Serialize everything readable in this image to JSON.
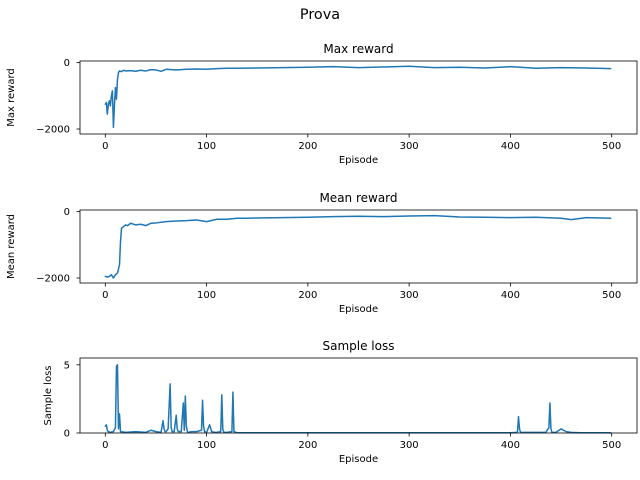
{
  "figure": {
    "suptitle": "Prova",
    "line_color": "#1f77b4"
  },
  "chart_data": [
    {
      "type": "line",
      "title": "Max reward",
      "xlabel": "Episode",
      "ylabel": "Max reward",
      "xlim": [
        -25,
        525
      ],
      "ylim": [
        -2150,
        50
      ],
      "xticks": [
        0,
        100,
        200,
        300,
        400,
        500
      ],
      "yticks": [
        -2000,
        0
      ],
      "ytick_labels": [
        "−2000",
        "0"
      ],
      "grid": false,
      "series": [
        {
          "x": [
            0,
            1,
            2,
            3,
            4,
            5,
            6,
            7,
            8,
            9,
            10,
            11,
            12,
            13,
            14,
            15,
            16,
            18,
            20,
            25,
            30,
            35,
            40,
            45,
            50,
            55,
            60,
            70,
            80,
            90,
            100,
            110,
            120,
            130,
            140,
            150,
            175,
            200,
            225,
            250,
            275,
            300,
            325,
            350,
            375,
            400,
            425,
            450,
            475,
            499
          ],
          "y": [
            -1250,
            -1200,
            -1550,
            -1250,
            -1150,
            -1300,
            -1000,
            -850,
            -1950,
            -1300,
            -750,
            -1100,
            -500,
            -300,
            -250,
            -260,
            -270,
            -230,
            -250,
            -240,
            -260,
            -230,
            -250,
            -210,
            -220,
            -260,
            -200,
            -220,
            -200,
            -190,
            -200,
            -180,
            -170,
            -170,
            -165,
            -160,
            -150,
            -140,
            -120,
            -150,
            -130,
            -110,
            -150,
            -140,
            -160,
            -120,
            -170,
            -150,
            -160,
            -180
          ]
        }
      ]
    },
    {
      "type": "line",
      "title": "Mean reward",
      "xlabel": "Episode",
      "ylabel": "Mean reward",
      "xlim": [
        -25,
        525
      ],
      "ylim": [
        -2150,
        50
      ],
      "xticks": [
        0,
        100,
        200,
        300,
        400,
        500
      ],
      "yticks": [
        -2000,
        0
      ],
      "ytick_labels": [
        "−2000",
        "0"
      ],
      "grid": false,
      "series": [
        {
          "x": [
            0,
            2,
            4,
            6,
            8,
            10,
            12,
            14,
            15,
            16,
            18,
            20,
            22,
            25,
            30,
            35,
            40,
            45,
            50,
            60,
            70,
            80,
            90,
            100,
            110,
            120,
            130,
            140,
            150,
            175,
            200,
            225,
            250,
            275,
            300,
            325,
            350,
            375,
            400,
            425,
            450,
            460,
            475,
            499
          ],
          "y": [
            -1950,
            -1970,
            -1950,
            -1900,
            -2000,
            -1900,
            -1850,
            -1600,
            -900,
            -500,
            -450,
            -400,
            -420,
            -350,
            -400,
            -380,
            -420,
            -350,
            -340,
            -300,
            -280,
            -270,
            -250,
            -300,
            -230,
            -230,
            -200,
            -200,
            -190,
            -180,
            -170,
            -150,
            -140,
            -150,
            -130,
            -120,
            -160,
            -170,
            -180,
            -170,
            -200,
            -240,
            -180,
            -200
          ]
        }
      ]
    },
    {
      "type": "line",
      "title": "Sample loss",
      "xlabel": "Episode",
      "ylabel": "Sample loss",
      "xlim": [
        -25,
        525
      ],
      "ylim": [
        0,
        5.5
      ],
      "xticks": [
        0,
        100,
        200,
        300,
        400,
        500
      ],
      "yticks": [
        0,
        5
      ],
      "ytick_labels": [
        "0",
        "5"
      ],
      "grid": false,
      "series": [
        {
          "x": [
            0,
            1,
            2,
            3,
            5,
            8,
            10,
            11,
            12,
            13,
            14,
            15,
            20,
            30,
            40,
            45,
            50,
            55,
            57,
            58,
            59,
            60,
            62,
            64,
            65,
            66,
            68,
            70,
            71,
            72,
            75,
            77,
            78,
            79,
            80,
            81,
            82,
            85,
            90,
            95,
            96,
            97,
            98,
            100,
            103,
            105,
            108,
            110,
            114,
            115,
            116,
            117,
            120,
            125,
            126,
            127,
            130,
            150,
            200,
            250,
            300,
            350,
            400,
            406,
            407,
            408,
            409,
            410,
            415,
            420,
            430,
            435,
            438,
            439,
            440,
            441,
            445,
            450,
            455,
            460,
            470,
            480,
            490,
            499
          ],
          "y": [
            0.5,
            0.6,
            0.2,
            0.1,
            0.05,
            0.1,
            0.4,
            4.9,
            5.0,
            0.3,
            1.4,
            0.1,
            0.05,
            0.1,
            0.05,
            0.2,
            0.1,
            0.05,
            0.9,
            0.3,
            0.1,
            0.1,
            0.3,
            3.6,
            0.4,
            0.1,
            0.1,
            1.3,
            0.3,
            0.1,
            0.1,
            2.2,
            0.2,
            2.7,
            0.5,
            0.1,
            0.05,
            0.1,
            0.1,
            0.2,
            2.4,
            0.5,
            0.1,
            0.05,
            0.6,
            0.1,
            0.05,
            0.05,
            0.1,
            2.8,
            0.3,
            0.05,
            0.05,
            0.1,
            3.0,
            0.1,
            0.02,
            0.02,
            0.02,
            0.02,
            0.02,
            0.02,
            0.02,
            0.05,
            0.1,
            1.2,
            0.3,
            0.05,
            0.05,
            0.05,
            0.05,
            0.05,
            0.4,
            2.2,
            0.3,
            0.05,
            0.05,
            0.3,
            0.1,
            0.05,
            0.02,
            0.02,
            0.02,
            0.02
          ]
        }
      ]
    }
  ]
}
